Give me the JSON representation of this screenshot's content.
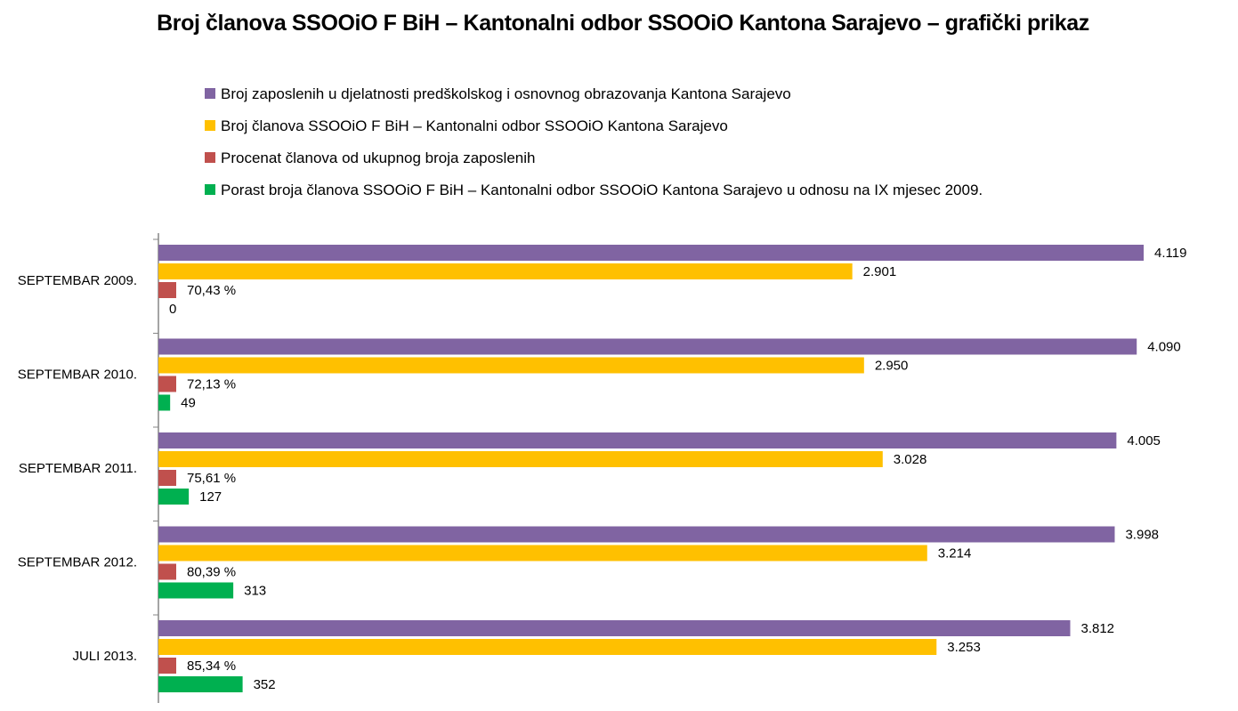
{
  "chart_data": {
    "type": "bar",
    "orientation": "horizontal",
    "title": "Broj članova SSOOiO F BiH – Kantonalni odbor SSOOiO Kantona Sarajevo – grafički prikaz",
    "legend_position": "top",
    "grid": false,
    "categories": [
      "SEPTEMBAR 2009.",
      "SEPTEMBAR 2010.",
      "SEPTEMBAR 2011.",
      "SEPTEMBAR 2012.",
      "JULI 2013."
    ],
    "series": [
      {
        "name": "Broj zaposlenih u djelatnosti predškolskog i osnovnog obrazovanja Kantona Sarajevo",
        "color": "#8064A2",
        "values": [
          4119,
          4090,
          4005,
          3998,
          3812
        ],
        "labels": [
          "4.119",
          "4.090",
          "4.005",
          "3.998",
          "3.812"
        ]
      },
      {
        "name": "Broj članova SSOOiO F BiH – Kantonalni odbor SSOOiO Kantona Sarajevo",
        "color": "#FFC000",
        "values": [
          2901,
          2950,
          3028,
          3214,
          3253
        ],
        "labels": [
          "2.901",
          "2.950",
          "3.028",
          "3.214",
          "3.253"
        ]
      },
      {
        "name": "Procenat  članova od ukupnog broja zaposlenih",
        "color": "#C0504D",
        "values": [
          70.43,
          72.13,
          75.61,
          80.39,
          85.34
        ],
        "labels": [
          "70,43 %",
          "72,13 %",
          "75,61 %",
          "80,39 %",
          "85,34 %"
        ]
      },
      {
        "name": "Porast broja članova SSOOiO F BiH – Kantonalni odbor SSOOiO Kantona Sarajevo u odnosu na IX mjesec 2009.",
        "color": "#00B050",
        "values": [
          0,
          49,
          127,
          313,
          352
        ],
        "labels": [
          "0",
          "49",
          "127",
          "313",
          "352"
        ]
      }
    ],
    "xlim": [
      0,
      4119
    ]
  }
}
